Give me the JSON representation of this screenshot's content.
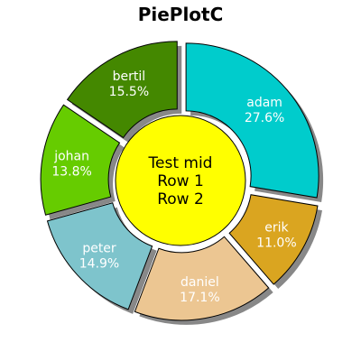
{
  "chart_data": {
    "type": "pie",
    "title": "PiePlotC",
    "center_label": [
      "Test mid",
      "Row 1",
      "Row 2"
    ],
    "center_color": "#ffff00",
    "shadow": true,
    "exploded": true,
    "series": [
      {
        "name": "adam",
        "value": 27.6,
        "label": "27.6%",
        "color": "#00cccc"
      },
      {
        "name": "erik",
        "value": 11.0,
        "label": "11.0%",
        "color": "#daa520"
      },
      {
        "name": "daniel",
        "value": 17.1,
        "label": "17.1%",
        "color": "#ecc692"
      },
      {
        "name": "peter",
        "value": 14.9,
        "label": "14.9%",
        "color": "#7ec4cc"
      },
      {
        "name": "johan",
        "value": 13.8,
        "label": "13.8%",
        "color": "#66cc00"
      },
      {
        "name": "bertil",
        "value": 15.5,
        "label": "15.5%",
        "color": "#448800"
      }
    ]
  }
}
